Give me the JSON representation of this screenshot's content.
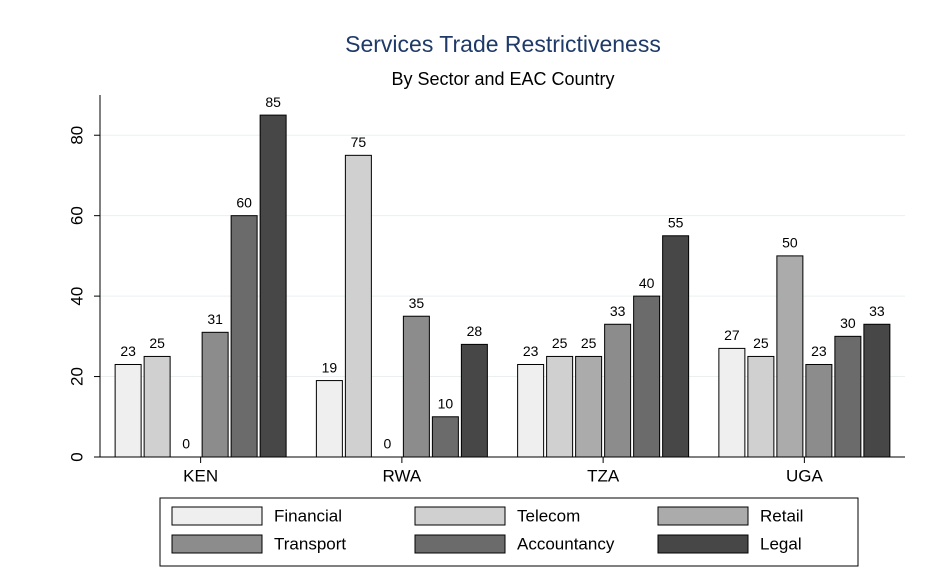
{
  "chart_data": {
    "type": "bar",
    "title": "Services Trade Restrictiveness",
    "subtitle": "By Sector and EAC Country",
    "categories": [
      "KEN",
      "RWA",
      "TZA",
      "UGA"
    ],
    "series": [
      {
        "name": "Financial",
        "color": "#efefef",
        "values": [
          23,
          19,
          23,
          27
        ]
      },
      {
        "name": "Telecom",
        "color": "#d0d0d0",
        "values": [
          25,
          75,
          25,
          25
        ]
      },
      {
        "name": "Retail",
        "color": "#ababab",
        "values": [
          0,
          0,
          25,
          50
        ]
      },
      {
        "name": "Transport",
        "color": "#8c8c8c",
        "values": [
          31,
          35,
          33,
          23
        ]
      },
      {
        "name": "Accountancy",
        "color": "#6b6b6b",
        "values": [
          60,
          10,
          40,
          30
        ]
      },
      {
        "name": "Legal",
        "color": "#474747",
        "values": [
          85,
          28,
          55,
          33
        ]
      }
    ],
    "ylim": [
      0,
      90
    ],
    "yticks": [
      0,
      20,
      40,
      60,
      80
    ],
    "grid": true
  }
}
